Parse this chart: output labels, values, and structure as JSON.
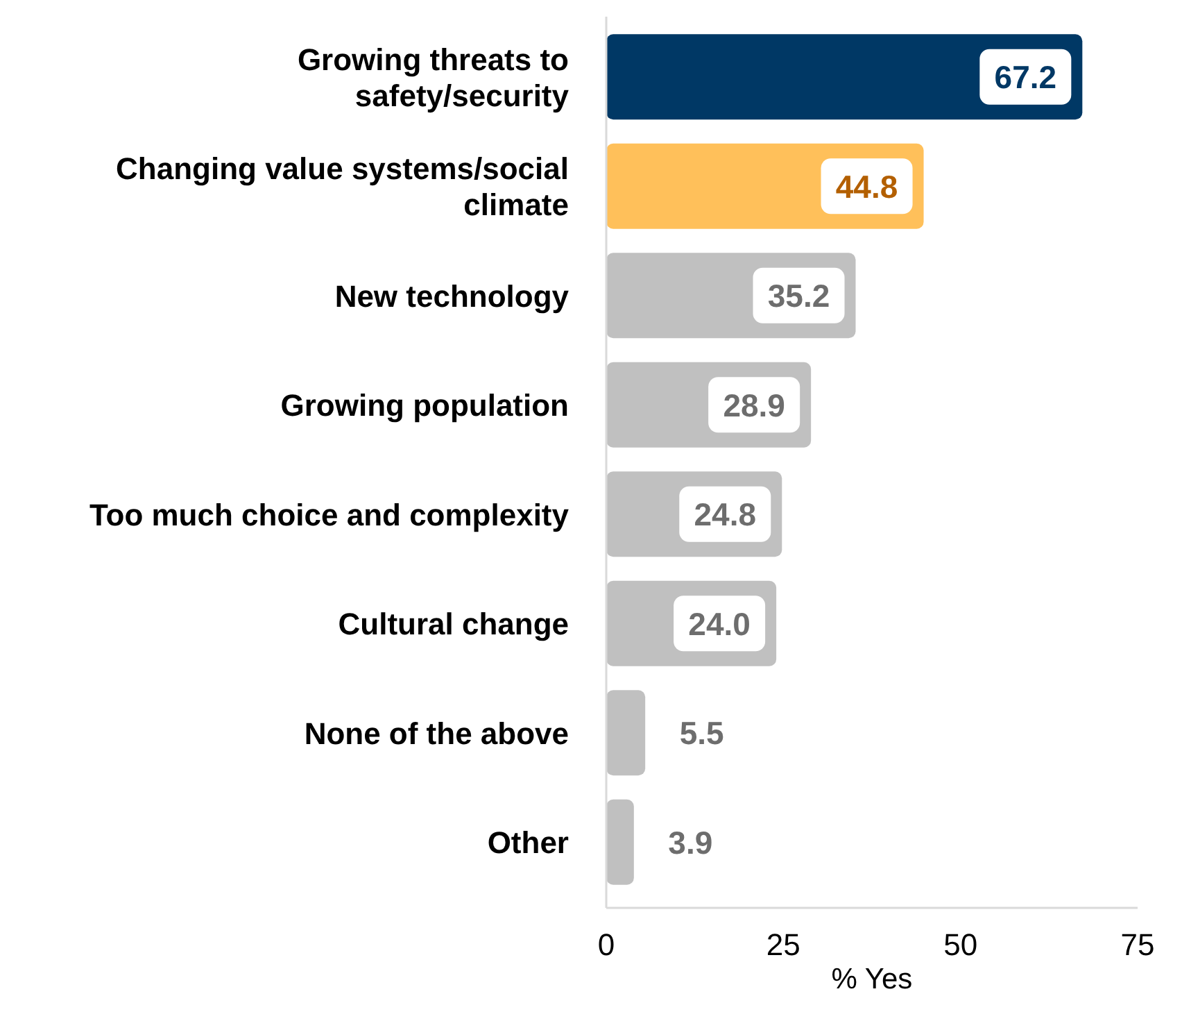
{
  "chart_data": {
    "type": "bar",
    "orientation": "horizontal",
    "xlabel": "% Yes",
    "categories": [
      "Growing threats to safety/security",
      "Changing value systems/social climate",
      "New technology",
      "Growing population",
      "Too much choice and complexity",
      "Cultural change",
      "None of the above",
      "Other"
    ],
    "values": [
      67.2,
      44.8,
      35.2,
      28.9,
      24.8,
      24.0,
      5.5,
      3.9
    ],
    "value_labels": [
      "67.2",
      "44.8",
      "35.2",
      "28.9",
      "24.8",
      "24.0",
      "5.5",
      "3.9"
    ],
    "colors": [
      "#003865",
      "#ffc05a",
      "#c0c0c0",
      "#c0c0c0",
      "#c0c0c0",
      "#c0c0c0",
      "#c0c0c0",
      "#c0c0c0"
    ],
    "xlim": [
      0,
      75
    ],
    "xticks": [
      0,
      25,
      50,
      75
    ],
    "grid": false
  }
}
